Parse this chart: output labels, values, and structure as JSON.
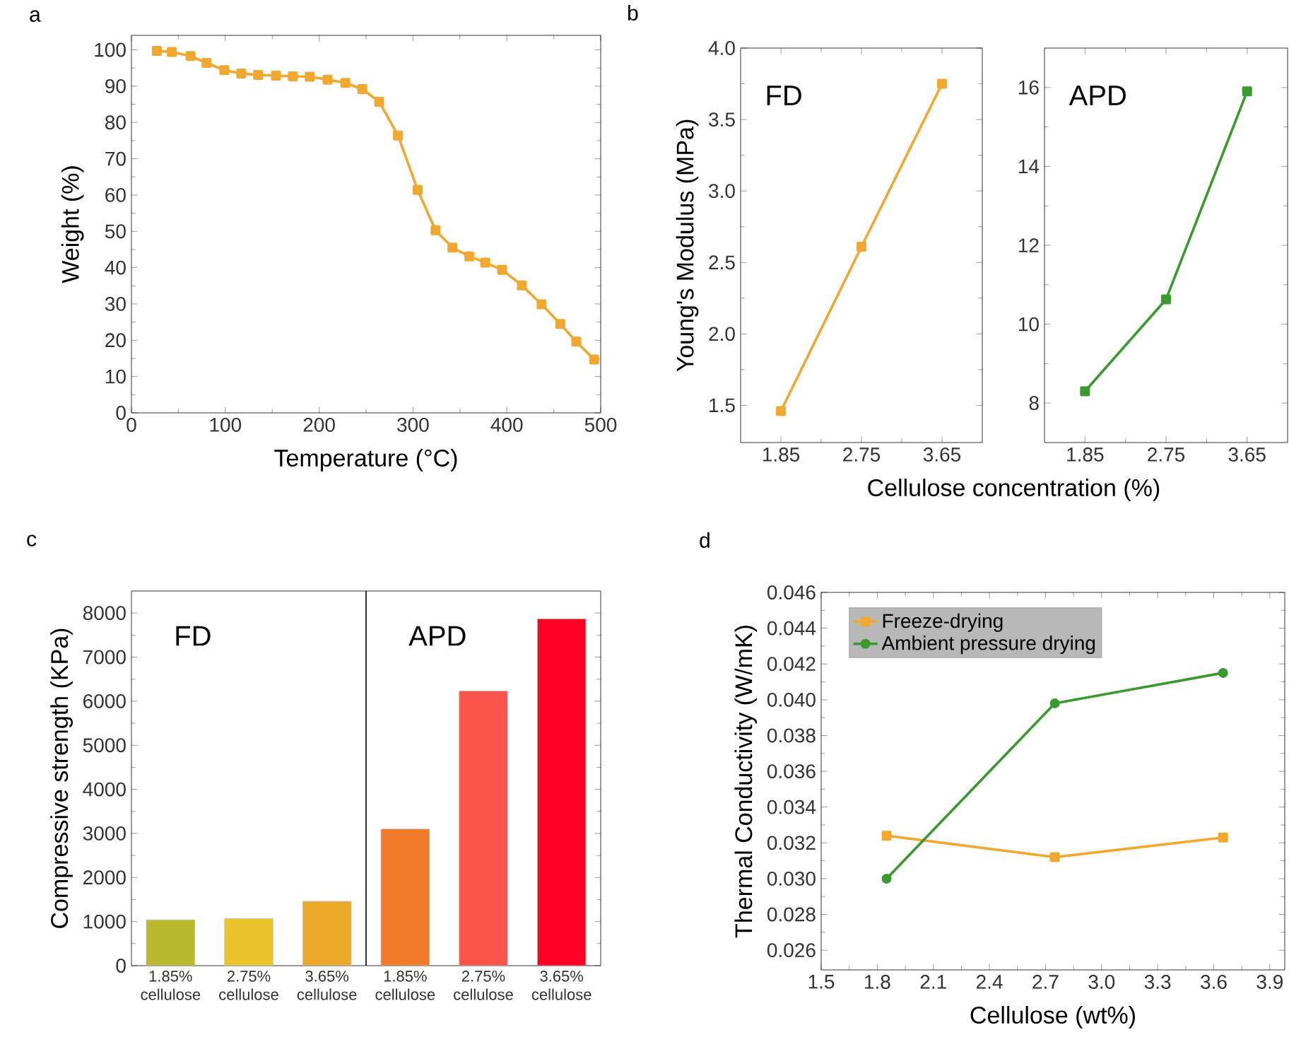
{
  "chart_data": [
    {
      "type": "line",
      "title": "a",
      "xlabel": "Temperature (°C)",
      "ylabel": "Weight (%)",
      "x": [
        27,
        43,
        63,
        80,
        99,
        117,
        135,
        154,
        172,
        190,
        209,
        228,
        246,
        264,
        284,
        305,
        324,
        342,
        360,
        377,
        395,
        416,
        437,
        457,
        474,
        493
      ],
      "series": [
        {
          "color": "#f0a830",
          "values": [
            99.7,
            99.4,
            98.3,
            96.4,
            94.4,
            93.5,
            93.1,
            92.9,
            92.7,
            92.6,
            91.8,
            90.9,
            89.2,
            85.7,
            76.4,
            61.4,
            50.3,
            45.5,
            43.1,
            41.4,
            39.4,
            35.1,
            29.9,
            24.5,
            19.6,
            14.7
          ]
        }
      ],
      "xlim": [
        0,
        500
      ],
      "ylim": [
        0,
        104
      ],
      "xticks": [
        0,
        100,
        200,
        300,
        400,
        500
      ],
      "yticks": [
        0,
        10,
        20,
        30,
        40,
        50,
        60,
        70,
        80,
        90,
        100
      ],
      "marker": "square"
    },
    {
      "type": "line",
      "title": "b",
      "xlabel": "Cellulose concentration (%)",
      "ylabel": "Young's Modulus (MPa)",
      "x": [
        1.85,
        2.75,
        3.65
      ],
      "series": [
        {
          "color": "#f0a830",
          "values": [
            1.46,
            2.61,
            3.75
          ]
        }
      ],
      "xlim": [
        1.4,
        4.1
      ],
      "ylim": [
        1.24,
        4.0
      ],
      "xticks": [
        1.85,
        2.75,
        3.65
      ],
      "yticks": [
        1.5,
        {
          "value": 2.0,
          "label": "2.0"
        },
        2.5,
        {
          "value": 3.0,
          "label": "3.0"
        },
        3.5,
        {
          "value": 4.0,
          "label": "4.0"
        }
      ],
      "annotations": [
        "FD"
      ],
      "marker": "square"
    },
    {
      "type": "line",
      "x": [
        1.85,
        2.75,
        3.65
      ],
      "series": [
        {
          "color": "#3a9a30",
          "values": [
            8.3,
            10.63,
            15.9
          ]
        }
      ],
      "xlim": [
        1.4,
        4.1
      ],
      "ylim": [
        7,
        17
      ],
      "xticks": [
        1.85,
        2.75,
        3.65
      ],
      "yticks": [
        8,
        10,
        12,
        14,
        16
      ],
      "annotations": [
        "APD"
      ],
      "marker": "square"
    },
    {
      "type": "bar",
      "title": "c",
      "ylabel": "Compressive strength (KPa)",
      "categories": [
        "1.85% cellulose",
        "2.75% cellulose",
        "3.65% cellulose",
        "1.85% cellulose",
        "2.75% cellulose",
        "3.65% cellulose"
      ],
      "values": [
        1040,
        1070,
        1460,
        3100,
        6230,
        7870
      ],
      "colors": [
        "#b9b92b",
        "#ebc32b",
        "#ecaa2b",
        "#f27a2b",
        "#fb544b",
        "#ff0026"
      ],
      "ylim": [
        0,
        8500
      ],
      "yticks": [
        0,
        1000,
        2000,
        3000,
        4000,
        5000,
        6000,
        7000,
        8000
      ],
      "annotations": [
        "FD",
        "APD"
      ]
    },
    {
      "type": "line",
      "title": "d",
      "xlabel": "Cellulose (wt%)",
      "ylabel": "Thermal Conductivity (W/mK)",
      "x": [
        1.85,
        2.75,
        3.65
      ],
      "series": [
        {
          "name": "Freeze-drying",
          "color": "#f0a830",
          "values": [
            0.0324,
            0.0312,
            0.0323
          ],
          "marker": "square"
        },
        {
          "name": "Ambient pressure drying",
          "color": "#3a9a30",
          "values": [
            0.03,
            0.0398,
            0.0415
          ],
          "marker": "circle"
        }
      ],
      "xlim": [
        1.5,
        3.98
      ],
      "ylim": [
        0.0249,
        0.046
      ],
      "xticks": [
        1.5,
        1.8,
        2.1,
        2.4,
        2.7,
        {
          "value": 3.0,
          "label": "3.0"
        },
        3.3,
        3.6,
        3.9
      ],
      "yticks": [
        0.026,
        0.028,
        {
          "value": 0.03,
          "label": "0.030"
        },
        0.032,
        0.034,
        0.036,
        0.038,
        {
          "value": 0.04,
          "label": "0.040"
        },
        0.042,
        0.044,
        0.046
      ],
      "legend": "top left"
    }
  ]
}
